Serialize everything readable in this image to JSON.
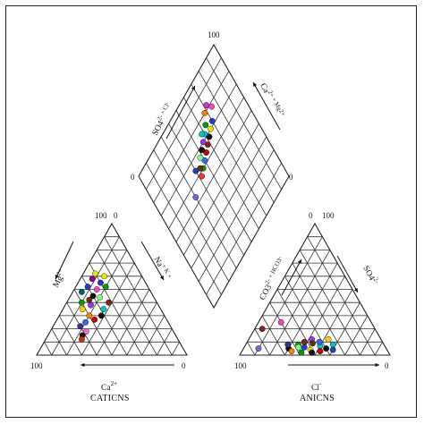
{
  "chart_data": {
    "type": "scatter",
    "diagram": "piper",
    "caption": {
      "cation_symbol": "Ca",
      "cation_sup": "2+",
      "cation_title": "CATICNS",
      "anion_symbol": "Cl",
      "anion_sup": "-",
      "anion_title": "ANICNS"
    },
    "cation_triangle": {
      "axis_left": {
        "label": "Mg",
        "sup": "2+"
      },
      "axis_right": {
        "label": "Na",
        "sup": "+ K +"
      },
      "axis_bottom": {
        "label": "Ca",
        "sup": "2+"
      },
      "ticks": {
        "top_left": "100",
        "top_right": "0",
        "bottom_left": "100",
        "bottom_right": "0"
      }
    },
    "anion_triangle": {
      "axis_left": {
        "label": "CO3",
        "sup": "2- + HCO3",
        "sup2": "-"
      },
      "axis_right": {
        "label": "SO4",
        "sup": "2-"
      },
      "axis_bottom": {
        "label": "Cl",
        "sup": "-"
      },
      "ticks": {
        "top_left": "0",
        "top_right": "100",
        "bottom_left": "100",
        "bottom_right": "0"
      }
    },
    "diamond": {
      "axis_left": {
        "label": "SO4",
        "sup": "2- + Cl",
        "sup2": "-"
      },
      "axis_right": {
        "label": "Ca",
        "sup": "2+ + Mg",
        "sup2": "2+"
      },
      "ticks": {
        "top": "100",
        "left": "0",
        "right": "0"
      }
    },
    "series": {
      "cations": [
        {
          "ca": 30,
          "mg": 55,
          "color": "#1f3fd1"
        },
        {
          "ca": 25,
          "mg": 60,
          "color": "#e6e600"
        },
        {
          "ca": 35,
          "mg": 50,
          "color": "#ff3fbf"
        },
        {
          "ca": 28,
          "mg": 52,
          "color": "#00a000"
        },
        {
          "ca": 40,
          "mg": 45,
          "color": "#111111"
        },
        {
          "ca": 32,
          "mg": 40,
          "color": "#8b2020"
        },
        {
          "ca": 45,
          "mg": 38,
          "color": "#9933ff"
        },
        {
          "ca": 38,
          "mg": 35,
          "color": "#00c8c8"
        },
        {
          "ca": 50,
          "mg": 30,
          "color": "#ff8000"
        },
        {
          "ca": 42,
          "mg": 30,
          "color": "#111111"
        },
        {
          "ca": 55,
          "mg": 25,
          "color": "#3366ff"
        },
        {
          "ca": 48,
          "mg": 27,
          "color": "#cc0000"
        },
        {
          "ca": 36,
          "mg": 44,
          "color": "#80ff80"
        },
        {
          "ca": 44,
          "mg": 42,
          "color": "#663300"
        },
        {
          "ca": 52,
          "mg": 35,
          "color": "#ffcc00"
        },
        {
          "ca": 60,
          "mg": 22,
          "color": "#333399"
        },
        {
          "ca": 58,
          "mg": 18,
          "color": "#ff66cc"
        },
        {
          "ca": 46,
          "mg": 48,
          "color": "#006666"
        },
        {
          "ca": 34,
          "mg": 58,
          "color": "#990099"
        },
        {
          "ca": 62,
          "mg": 15,
          "color": "#111111"
        },
        {
          "ca": 64,
          "mg": 12,
          "color": "#cc3300"
        },
        {
          "ca": 40,
          "mg": 52,
          "color": "#1f3fd1"
        },
        {
          "ca": 50,
          "mg": 40,
          "color": "#00a000"
        },
        {
          "ca": 30,
          "mg": 62,
          "color": "#e6e600"
        }
      ],
      "anions": [
        {
          "cl": 15,
          "so4": 25,
          "color": "#ff3fbf"
        },
        {
          "cl": 30,
          "so4": 5,
          "color": "#111111"
        },
        {
          "cl": 35,
          "so4": 8,
          "color": "#00a000"
        },
        {
          "cl": 40,
          "so4": 6,
          "color": "#1f3fd1"
        },
        {
          "cl": 45,
          "so4": 4,
          "color": "#e6e600"
        },
        {
          "cl": 50,
          "so4": 7,
          "color": "#00c8c8"
        },
        {
          "cl": 38,
          "so4": 10,
          "color": "#8b2020"
        },
        {
          "cl": 42,
          "so4": 12,
          "color": "#9933ff"
        },
        {
          "cl": 55,
          "so4": 5,
          "color": "#111111"
        },
        {
          "cl": 33,
          "so4": 3,
          "color": "#ff8000"
        },
        {
          "cl": 48,
          "so4": 10,
          "color": "#3366ff"
        },
        {
          "cl": 52,
          "so4": 3,
          "color": "#cc0000"
        },
        {
          "cl": 36,
          "so4": 6,
          "color": "#80ff80"
        },
        {
          "cl": 44,
          "so4": 9,
          "color": "#663300"
        },
        {
          "cl": 58,
          "so4": 8,
          "color": "#00c8c8"
        },
        {
          "cl": 10,
          "so4": 5,
          "color": "#6b6bd6"
        },
        {
          "cl": 5,
          "so4": 20,
          "color": "#8b2020"
        },
        {
          "cl": 47,
          "so4": 2,
          "color": "#111111"
        },
        {
          "cl": 40,
          "so4": 2,
          "color": "#00a000"
        },
        {
          "cl": 60,
          "so4": 4,
          "color": "#1f3fd1"
        },
        {
          "cl": 28,
          "so4": 8,
          "color": "#333399"
        },
        {
          "cl": 53,
          "so4": 12,
          "color": "#ffcc00"
        }
      ],
      "diamond": [
        {
          "so4cl": 75,
          "camg": 78,
          "color": "#ff3fbf"
        },
        {
          "so4cl": 70,
          "camg": 72,
          "color": "#1f3fd1"
        },
        {
          "so4cl": 66,
          "camg": 70,
          "color": "#e6e600"
        },
        {
          "so4cl": 64,
          "camg": 75,
          "color": "#00a000"
        },
        {
          "so4cl": 62,
          "camg": 68,
          "color": "#111111"
        },
        {
          "so4cl": 60,
          "camg": 72,
          "color": "#00c8c8"
        },
        {
          "so4cl": 58,
          "camg": 66,
          "color": "#8b2020"
        },
        {
          "so4cl": 56,
          "camg": 70,
          "color": "#9933ff"
        },
        {
          "so4cl": 68,
          "camg": 80,
          "color": "#ff8000"
        },
        {
          "so4cl": 54,
          "camg": 64,
          "color": "#cc0000"
        },
        {
          "so4cl": 52,
          "camg": 68,
          "color": "#111111"
        },
        {
          "so4cl": 50,
          "camg": 62,
          "color": "#3366ff"
        },
        {
          "so4cl": 48,
          "camg": 66,
          "color": "#80ff80"
        },
        {
          "so4cl": 46,
          "camg": 60,
          "color": "#00a000"
        },
        {
          "so4cl": 44,
          "camg": 62,
          "color": "#663300"
        },
        {
          "so4cl": 72,
          "camg": 82,
          "color": "#cc33cc"
        },
        {
          "so4cl": 58,
          "camg": 74,
          "color": "#00c8c8"
        },
        {
          "so4cl": 42,
          "camg": 58,
          "color": "#ff3333"
        },
        {
          "so4cl": 40,
          "camg": 64,
          "color": "#1f3fd1"
        },
        {
          "so4cl": 30,
          "camg": 54,
          "color": "#6b6bd6"
        }
      ]
    }
  }
}
